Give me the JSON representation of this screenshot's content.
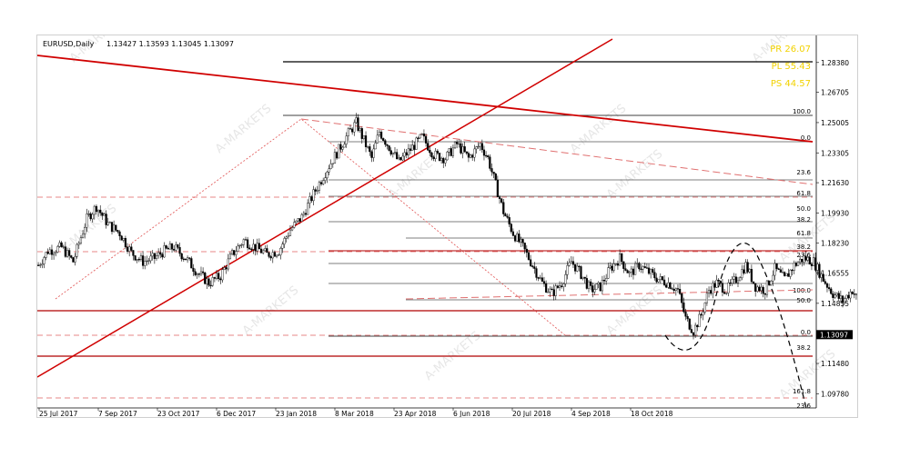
{
  "chart_data": {
    "type": "candlestick",
    "symbol_label": "EURUSD,Daily",
    "ohlc_label": "1.13427 1.13593 1.13045 1.13097",
    "watermark": "A-MARKETS",
    "stats": [
      "PR 26.07",
      "PL 55.43",
      "PS 44.57"
    ],
    "stats_color": "#f2d200",
    "price_axis": {
      "ylim": [
        1.0898,
        1.299
      ],
      "ticks": [
        "1.28380",
        "1.26705",
        "1.25005",
        "1.23305",
        "1.21630",
        "1.19930",
        "1.18230",
        "1.16555",
        "1.14855",
        "1.13097",
        "1.11480",
        "1.09780"
      ],
      "current_price": "1.13097"
    },
    "time_axis": {
      "labels": [
        "25 Jul 2017",
        "7 Sep 2017",
        "23 Oct 2017",
        "6 Dec 2017",
        "23 Jan 2018",
        "8 Mar 2018",
        "23 Apr 2018",
        "6 Jun 2018",
        "20 Jul 2018",
        "4 Sep 2018",
        "18 Oct 2018"
      ],
      "bars_visible": 320
    },
    "series": [
      {
        "anchors": [
          [
            0,
            1.17
          ],
          [
            5,
            1.178
          ],
          [
            12,
            1.18
          ],
          [
            18,
            1.172
          ],
          [
            25,
            1.196
          ],
          [
            30,
            1.203
          ],
          [
            36,
            1.193
          ],
          [
            42,
            1.188
          ],
          [
            48,
            1.177
          ],
          [
            54,
            1.172
          ],
          [
            60,
            1.174
          ],
          [
            65,
            1.178
          ],
          [
            70,
            1.18
          ],
          [
            76,
            1.174
          ],
          [
            82,
            1.166
          ],
          [
            88,
            1.16
          ],
          [
            94,
            1.164
          ],
          [
            100,
            1.176
          ],
          [
            106,
            1.184
          ],
          [
            112,
            1.18
          ],
          [
            118,
            1.176
          ],
          [
            124,
            1.178
          ],
          [
            130,
            1.19
          ],
          [
            136,
            1.197
          ],
          [
            142,
            1.21
          ],
          [
            148,
            1.222
          ],
          [
            154,
            1.233
          ],
          [
            160,
            1.244
          ],
          [
            164,
            1.25
          ],
          [
            168,
            1.24
          ],
          [
            172,
            1.23
          ],
          [
            176,
            1.245
          ],
          [
            180,
            1.238
          ],
          [
            186,
            1.228
          ],
          [
            192,
            1.235
          ],
          [
            198,
            1.242
          ],
          [
            204,
            1.232
          ],
          [
            210,
            1.23
          ],
          [
            216,
            1.238
          ],
          [
            222,
            1.23
          ],
          [
            228,
            1.238
          ],
          [
            232,
            1.23
          ],
          [
            236,
            1.215
          ],
          [
            240,
            1.2
          ],
          [
            245,
            1.188
          ],
          [
            250,
            1.18
          ],
          [
            255,
            1.17
          ],
          [
            260,
            1.16
          ],
          [
            265,
            1.154
          ],
          [
            270,
            1.16
          ],
          [
            275,
            1.172
          ],
          [
            280,
            1.165
          ],
          [
            285,
            1.156
          ],
          [
            290,
            1.158
          ],
          [
            295,
            1.168
          ],
          [
            300,
            1.174
          ],
          [
            305,
            1.165
          ],
          [
            310,
            1.17
          ],
          [
            315,
            1.166
          ],
          [
            320,
            1.162
          ],
          [
            325,
            1.16
          ],
          [
            330,
            1.156
          ],
          [
            334,
            1.14
          ],
          [
            338,
            1.133
          ],
          [
            342,
            1.142
          ],
          [
            346,
            1.156
          ],
          [
            350,
            1.16
          ],
          [
            355,
            1.156
          ],
          [
            360,
            1.162
          ],
          [
            365,
            1.17
          ],
          [
            370,
            1.158
          ],
          [
            375,
            1.156
          ],
          [
            380,
            1.168
          ],
          [
            385,
            1.162
          ],
          [
            390,
            1.17
          ],
          [
            395,
            1.174
          ],
          [
            400,
            1.172
          ],
          [
            405,
            1.162
          ],
          [
            410,
            1.154
          ],
          [
            415,
            1.15
          ],
          [
            420,
            1.156
          ],
          [
            425,
            1.146
          ],
          [
            430,
            1.136
          ],
          [
            434,
            1.131
          ]
        ]
      }
    ],
    "fib_levels": [
      "100.0",
      "0.0",
      "23.6",
      "61.8",
      "50.0",
      "38.2",
      "61.8",
      "38.2",
      "23.6",
      "100.0",
      "50.0",
      "0.0",
      "38.2",
      "161.8",
      "23.6"
    ],
    "grid": false
  }
}
